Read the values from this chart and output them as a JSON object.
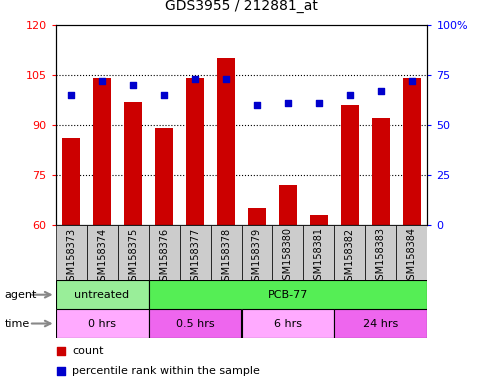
{
  "title": "GDS3955 / 212881_at",
  "samples": [
    "GSM158373",
    "GSM158374",
    "GSM158375",
    "GSM158376",
    "GSM158377",
    "GSM158378",
    "GSM158379",
    "GSM158380",
    "GSM158381",
    "GSM158382",
    "GSM158383",
    "GSM158384"
  ],
  "counts": [
    86,
    104,
    97,
    89,
    104,
    110,
    65,
    72,
    63,
    96,
    92,
    104
  ],
  "percentile_ranks": [
    65,
    72,
    70,
    65,
    73,
    73,
    60,
    61,
    61,
    65,
    67,
    72
  ],
  "ylim_left": [
    60,
    120
  ],
  "ylim_right": [
    0,
    100
  ],
  "yticks_left": [
    60,
    75,
    90,
    105,
    120
  ],
  "yticks_right": [
    0,
    25,
    50,
    75,
    100
  ],
  "bar_color": "#cc0000",
  "dot_color": "#0000cc",
  "agent_row": [
    {
      "label": "untreated",
      "start": 0,
      "end": 3,
      "color": "#99ee99"
    },
    {
      "label": "PCB-77",
      "start": 3,
      "end": 12,
      "color": "#55ee55"
    }
  ],
  "time_row": [
    {
      "label": "0 hrs",
      "start": 0,
      "end": 3,
      "color": "#ffaaff"
    },
    {
      "label": "0.5 hrs",
      "start": 3,
      "end": 6,
      "color": "#ee66ee"
    },
    {
      "label": "6 hrs",
      "start": 6,
      "end": 9,
      "color": "#ffaaff"
    },
    {
      "label": "24 hrs",
      "start": 9,
      "end": 12,
      "color": "#ee66ee"
    }
  ],
  "bg_color": "#ffffff",
  "label_area_color": "#cccccc",
  "legend_count_color": "#cc0000",
  "legend_dot_color": "#0000cc",
  "agent_label": "agent",
  "time_label": "time",
  "legend_count_text": "count",
  "legend_dot_text": "percentile rank within the sample"
}
